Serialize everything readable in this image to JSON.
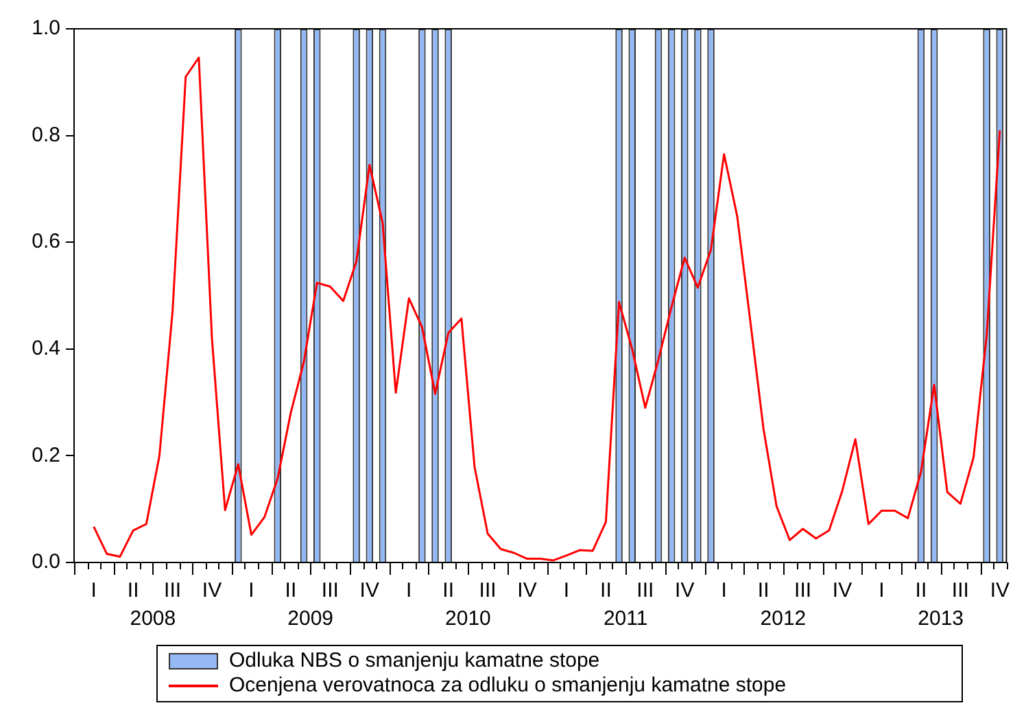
{
  "chart_data": {
    "type": "bar",
    "categories": [
      null,
      "I",
      null,
      null,
      "II",
      null,
      null,
      "III",
      null,
      null,
      "IV",
      null,
      null,
      "I",
      null,
      null,
      "II",
      null,
      null,
      "III",
      null,
      null,
      "IV",
      null,
      null,
      "I",
      null,
      null,
      "II",
      null,
      null,
      "III",
      null,
      null,
      "IV",
      null,
      null,
      "I",
      null,
      null,
      "II",
      null,
      null,
      "III",
      null,
      null,
      "IV",
      null,
      null,
      "I",
      null,
      null,
      "II",
      null,
      null,
      "III",
      null,
      null,
      "IV",
      null,
      null,
      "I",
      null,
      null,
      "II",
      null,
      null,
      "III",
      null,
      null,
      "IV"
    ],
    "annotations": [
      "2008",
      "2009",
      "2010",
      "2011",
      "2012",
      "2013"
    ],
    "series": [
      {
        "name": "Odluka NBS o smanjenju kamatne stope",
        "color": "#94b8f2",
        "values": [
          0,
          0,
          0,
          0,
          0,
          0,
          0,
          0,
          0,
          0,
          0,
          0,
          1,
          0,
          0,
          1,
          0,
          1,
          1,
          0,
          0,
          1,
          1,
          1,
          0,
          0,
          1,
          1,
          1,
          0,
          0,
          0,
          0,
          0,
          0,
          0,
          0,
          0,
          0,
          0,
          0,
          1,
          1,
          0,
          1,
          1,
          1,
          1,
          1,
          0,
          0,
          0,
          0,
          0,
          0,
          0,
          0,
          0,
          0,
          0,
          0,
          0,
          0,
          0,
          1,
          1,
          0,
          0,
          0,
          1,
          1
        ]
      },
      {
        "name": "Ocenjena verovatnoca za odluku o smanjenju kamatne stope",
        "type": "line",
        "color": "#ff0000",
        "values": [
          null,
          0.067,
          0.016,
          0.011,
          0.06,
          0.072,
          0.2,
          0.47,
          0.91,
          0.946,
          0.42,
          0.098,
          0.184,
          0.052,
          0.085,
          0.157,
          0.28,
          0.376,
          0.524,
          0.517,
          0.49,
          0.564,
          0.745,
          0.636,
          0.318,
          0.495,
          0.441,
          0.316,
          0.43,
          0.457,
          0.179,
          0.054,
          0.025,
          0.018,
          0.007,
          0.007,
          0.004,
          0.013,
          0.023,
          0.022,
          0.076,
          0.488,
          0.4,
          0.29,
          0.38,
          0.479,
          0.571,
          0.515,
          0.586,
          0.765,
          0.649,
          0.452,
          0.251,
          0.105,
          0.042,
          0.063,
          0.045,
          0.06,
          0.134,
          0.231,
          0.072,
          0.097,
          0.097,
          0.083,
          0.17,
          0.333,
          0.132,
          0.11,
          0.197,
          0.425,
          0.81
        ]
      }
    ],
    "ylim": [
      0,
      1
    ],
    "yticks": [
      {
        "value": 0,
        "label": "0.0"
      },
      0.2,
      0.4,
      0.6,
      0.8,
      {
        "value": 1,
        "label": "1.0"
      }
    ],
    "grid": false,
    "legend": "bottom"
  }
}
